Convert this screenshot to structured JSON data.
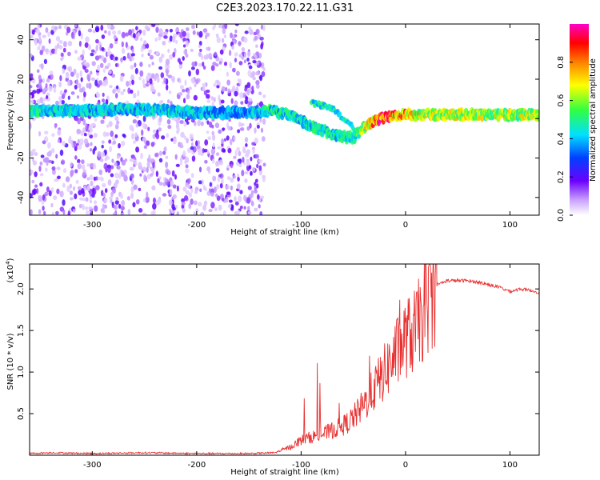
{
  "title": "C2E3.2023.170.22.11.G31",
  "colors": {
    "snr_line": "#e83030",
    "frame": "#000000"
  },
  "chart_data": [
    {
      "type": "heatmap",
      "xlabel": "Height of straight line (km)",
      "ylabel": "Frequency (Hz)",
      "xlim": [
        -360,
        128
      ],
      "ylim": [
        -49,
        48
      ],
      "xticks": [
        -300,
        -200,
        -100,
        0,
        100
      ],
      "yticks": [
        -40,
        -20,
        0,
        20,
        40
      ],
      "colorbar": {
        "label": "Normalized spectral amplitude",
        "ticks": [
          0.0,
          0.2,
          0.4,
          0.6,
          0.8
        ],
        "range": [
          0,
          1
        ],
        "colormap": "white-purple-blue-cyan-green-yellow-orange-red-magenta"
      },
      "ridge": [
        {
          "x": -360,
          "f": 4,
          "a": 0.45
        },
        {
          "x": -300,
          "f": 4,
          "a": 0.4
        },
        {
          "x": -260,
          "f": 5,
          "a": 0.4
        },
        {
          "x": -200,
          "f": 3,
          "a": 0.4
        },
        {
          "x": -150,
          "f": 3,
          "a": 0.35
        },
        {
          "x": -130,
          "f": 4,
          "a": 0.45
        },
        {
          "x": -110,
          "f": 2,
          "a": 0.45
        },
        {
          "x": -90,
          "f": -4,
          "a": 0.45
        },
        {
          "x": -70,
          "f": -8,
          "a": 0.45
        },
        {
          "x": -50,
          "f": -10,
          "a": 0.45
        },
        {
          "x": -40,
          "f": -4,
          "a": 0.6
        },
        {
          "x": -25,
          "f": 0,
          "a": 0.85
        },
        {
          "x": 0,
          "f": 2,
          "a": 0.75
        },
        {
          "x": 20,
          "f": 2,
          "a": 0.6
        },
        {
          "x": 128,
          "f": 2,
          "a": 0.6
        }
      ],
      "branch": [
        {
          "x": -90,
          "f": 8,
          "a": 0.45
        },
        {
          "x": -70,
          "f": 5,
          "a": 0.45
        },
        {
          "x": -55,
          "f": -2,
          "a": 0.45
        },
        {
          "x": -45,
          "f": -8,
          "a": 0.5
        }
      ]
    },
    {
      "type": "line",
      "xlabel": "Height of straight line (km)",
      "ylabel": "SNR (10 * v/v)",
      "multiplier": "(x10",
      "multiplier_exp": "4",
      "multiplier_close": ")",
      "xlim": [
        -360,
        128
      ],
      "ylim": [
        0,
        2.3
      ],
      "xticks": [
        -300,
        -200,
        -100,
        0,
        100
      ],
      "yticks": [
        0.5,
        1.0,
        1.5,
        2.0
      ],
      "series": [
        {
          "x": [
            -360,
            -340,
            -300,
            -250,
            -200,
            -150,
            -125,
            -110,
            -100,
            -90,
            -80,
            -70,
            -60,
            -50,
            -40,
            -30,
            -20,
            -10,
            0,
            10,
            20,
            30,
            40,
            50,
            60,
            70,
            80,
            90,
            100,
            110,
            120,
            128
          ],
          "values": [
            0.02,
            0.03,
            0.02,
            0.03,
            0.02,
            0.02,
            0.03,
            0.1,
            0.18,
            0.22,
            0.25,
            0.3,
            0.35,
            0.45,
            0.6,
            0.8,
            1.0,
            1.2,
            1.4,
            1.5,
            1.8,
            2.05,
            2.1,
            2.1,
            2.1,
            2.08,
            2.05,
            2.02,
            1.97,
            2.0,
            1.98,
            1.96
          ]
        }
      ]
    }
  ]
}
